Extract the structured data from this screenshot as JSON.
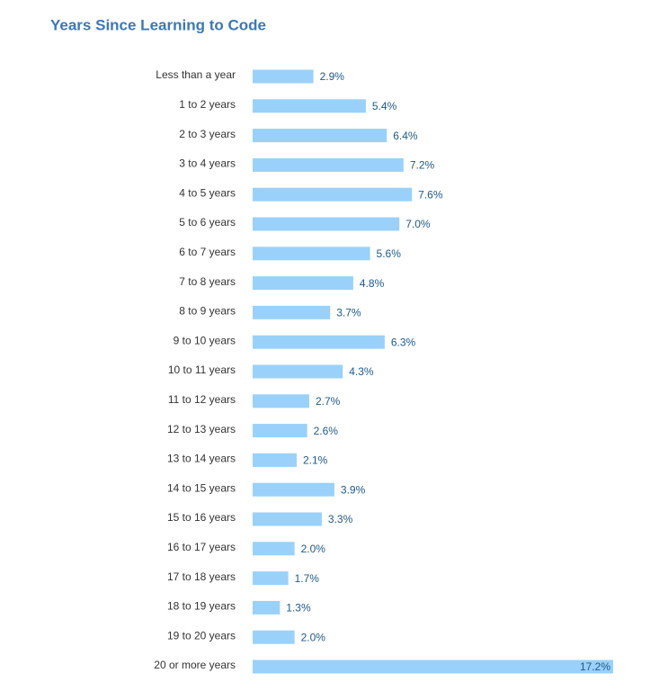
{
  "chart_data": {
    "type": "bar",
    "orientation": "horizontal",
    "title": "Years Since Learning to Code",
    "categories": [
      "Less than a year",
      "1 to 2 years",
      "2 to 3 years",
      "3 to 4 years",
      "4 to 5 years",
      "5 to 6 years",
      "6 to 7 years",
      "7 to 8 years",
      "8 to 9 years",
      "9 to 10 years",
      "10 to 11 years",
      "11 to 12 years",
      "12 to 13 years",
      "13 to 14 years",
      "14 to 15 years",
      "15 to 16 years",
      "16 to 17 years",
      "17 to 18 years",
      "18 to 19 years",
      "19 to 20 years",
      "20 or more years"
    ],
    "values": [
      2.9,
      5.4,
      6.4,
      7.2,
      7.6,
      7.0,
      5.6,
      4.8,
      3.7,
      6.3,
      4.3,
      2.7,
      2.6,
      2.1,
      3.9,
      3.3,
      2.0,
      1.7,
      1.3,
      2.0,
      17.2
    ],
    "value_labels": [
      "2.9%",
      "5.4%",
      "6.4%",
      "7.2%",
      "7.6%",
      "7.0%",
      "5.6%",
      "4.8%",
      "3.7%",
      "6.3%",
      "4.3%",
      "2.7%",
      "2.6%",
      "2.1%",
      "3.9%",
      "3.3%",
      "2.0%",
      "1.7%",
      "1.3%",
      "2.0%",
      "17.2%"
    ],
    "color": "#99d1fa"
  }
}
